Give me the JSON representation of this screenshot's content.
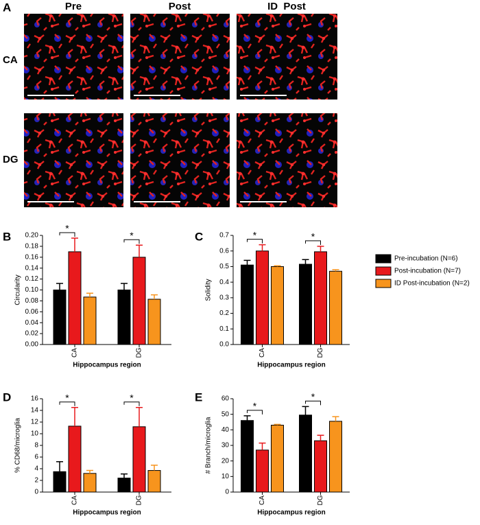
{
  "figure": {
    "panel_labels": [
      "A",
      "B",
      "C",
      "D",
      "E"
    ],
    "columns": [
      "Pre",
      "Post",
      "ID  Post"
    ],
    "rows": [
      "CA",
      "DG"
    ]
  },
  "legend": [
    {
      "name": "Pre-incubation (N=6)",
      "color": "#000000"
    },
    {
      "name": "Post-incubation (N=7)",
      "color": "#e8191c"
    },
    {
      "name": "ID Post-incubation (N=2)",
      "color": "#f7941d"
    }
  ],
  "chart_data": [
    {
      "type": "bar",
      "ylabel": "Circularity",
      "xlabel": "Hippocampus region",
      "categories": [
        "CA",
        "DG"
      ],
      "series": [
        {
          "color": "#000000",
          "values": [
            0.1,
            0.1
          ],
          "errors": [
            0.012,
            0.012
          ]
        },
        {
          "color": "#e8191c",
          "values": [
            0.17,
            0.16
          ],
          "errors": [
            0.025,
            0.022
          ]
        },
        {
          "color": "#f7941d",
          "values": [
            0.087,
            0.083
          ],
          "errors": [
            0.007,
            0.008
          ]
        }
      ],
      "ylim": [
        0,
        0.2
      ],
      "yticks": [
        {
          "value": 0,
          "label": "0.00"
        },
        {
          "value": 0.02,
          "label": "0.02"
        },
        {
          "value": 0.04,
          "label": "0.04"
        },
        {
          "value": 0.06,
          "label": "0.06"
        },
        {
          "value": 0.08,
          "label": "0.08"
        },
        {
          "value": 0.1,
          "label": "0.10"
        },
        {
          "value": 0.12,
          "label": "0.12"
        },
        {
          "value": 0.14,
          "label": "0.14"
        },
        {
          "value": 0.16,
          "label": "0.16"
        },
        {
          "value": 0.18,
          "label": "0.18"
        },
        {
          "value": 0.2,
          "label": "0.20"
        }
      ],
      "significance": [
        "*",
        "*"
      ]
    },
    {
      "type": "bar",
      "ylabel": "Solidity",
      "xlabel": "Hippocampus region",
      "categories": [
        "CA",
        "DG"
      ],
      "series": [
        {
          "color": "#000000",
          "values": [
            0.51,
            0.515
          ],
          "errors": [
            0.03,
            0.03
          ]
        },
        {
          "color": "#e8191c",
          "values": [
            0.6,
            0.595
          ],
          "errors": [
            0.04,
            0.035
          ]
        },
        {
          "color": "#f7941d",
          "values": [
            0.5,
            0.47
          ],
          "errors": [
            0.005,
            0.01
          ]
        }
      ],
      "ylim": [
        0,
        0.7
      ],
      "yticks": [
        {
          "value": 0,
          "label": "0.0"
        },
        0.1,
        0.2,
        0.3,
        0.4,
        0.5,
        0.6,
        0.7
      ],
      "significance": [
        "*",
        "*"
      ]
    },
    {
      "type": "bar",
      "ylabel": "% CD68/microglia",
      "xlabel": "Hippocampus region",
      "categories": [
        "CA",
        "DG"
      ],
      "series": [
        {
          "color": "#000000",
          "values": [
            3.5,
            2.4
          ],
          "errors": [
            1.7,
            0.7
          ]
        },
        {
          "color": "#e8191c",
          "values": [
            11.3,
            11.2
          ],
          "errors": [
            3.2,
            3.3
          ]
        },
        {
          "color": "#f7941d",
          "values": [
            3.2,
            3.7
          ],
          "errors": [
            0.5,
            0.9
          ]
        }
      ],
      "ylim": [
        0,
        16
      ],
      "yticks": [
        0,
        2,
        4,
        6,
        8,
        10,
        12,
        14,
        16
      ],
      "significance": [
        "*",
        "*"
      ]
    },
    {
      "type": "bar",
      "ylabel": "# Branch/microglia",
      "xlabel": "Hippocampus region",
      "categories": [
        "CA",
        "DG"
      ],
      "series": [
        {
          "color": "#000000",
          "values": [
            46,
            49.5
          ],
          "errors": [
            3,
            5.5
          ]
        },
        {
          "color": "#e8191c",
          "values": [
            27,
            33
          ],
          "errors": [
            4.5,
            3.5
          ]
        },
        {
          "color": "#f7941d",
          "values": [
            43,
            45.5
          ],
          "errors": [
            0.5,
            3
          ]
        }
      ],
      "ylim": [
        0,
        60
      ],
      "yticks": [
        0,
        10,
        20,
        30,
        40,
        50,
        60
      ],
      "significance": [
        "*",
        "*"
      ]
    }
  ]
}
